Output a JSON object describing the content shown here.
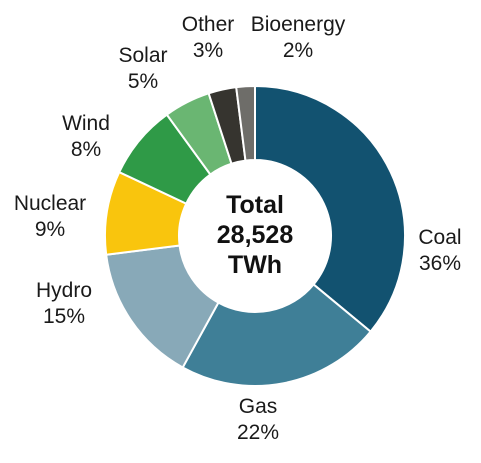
{
  "chart_data": {
    "type": "pie",
    "variant": "donut",
    "center_text": [
      "Total",
      "28,528",
      "TWh"
    ],
    "slices": [
      {
        "name": "Coal",
        "label": "36%",
        "value": 36,
        "color": "#125270"
      },
      {
        "name": "Gas",
        "label": "22%",
        "value": 22,
        "color": "#3f7f97"
      },
      {
        "name": "Hydro",
        "label": "15%",
        "value": 15,
        "color": "#88a9b8"
      },
      {
        "name": "Nuclear",
        "label": "9%",
        "value": 9,
        "color": "#f9c50d"
      },
      {
        "name": "Wind",
        "label": "8%",
        "value": 8,
        "color": "#2f9a47"
      },
      {
        "name": "Solar",
        "label": "5%",
        "value": 5,
        "color": "#6ab672"
      },
      {
        "name": "Other",
        "label": "3%",
        "value": 3,
        "color": "#36342f"
      },
      {
        "name": "Bioenergy",
        "label": "2%",
        "value": 2,
        "color": "#6e6d69"
      }
    ]
  }
}
